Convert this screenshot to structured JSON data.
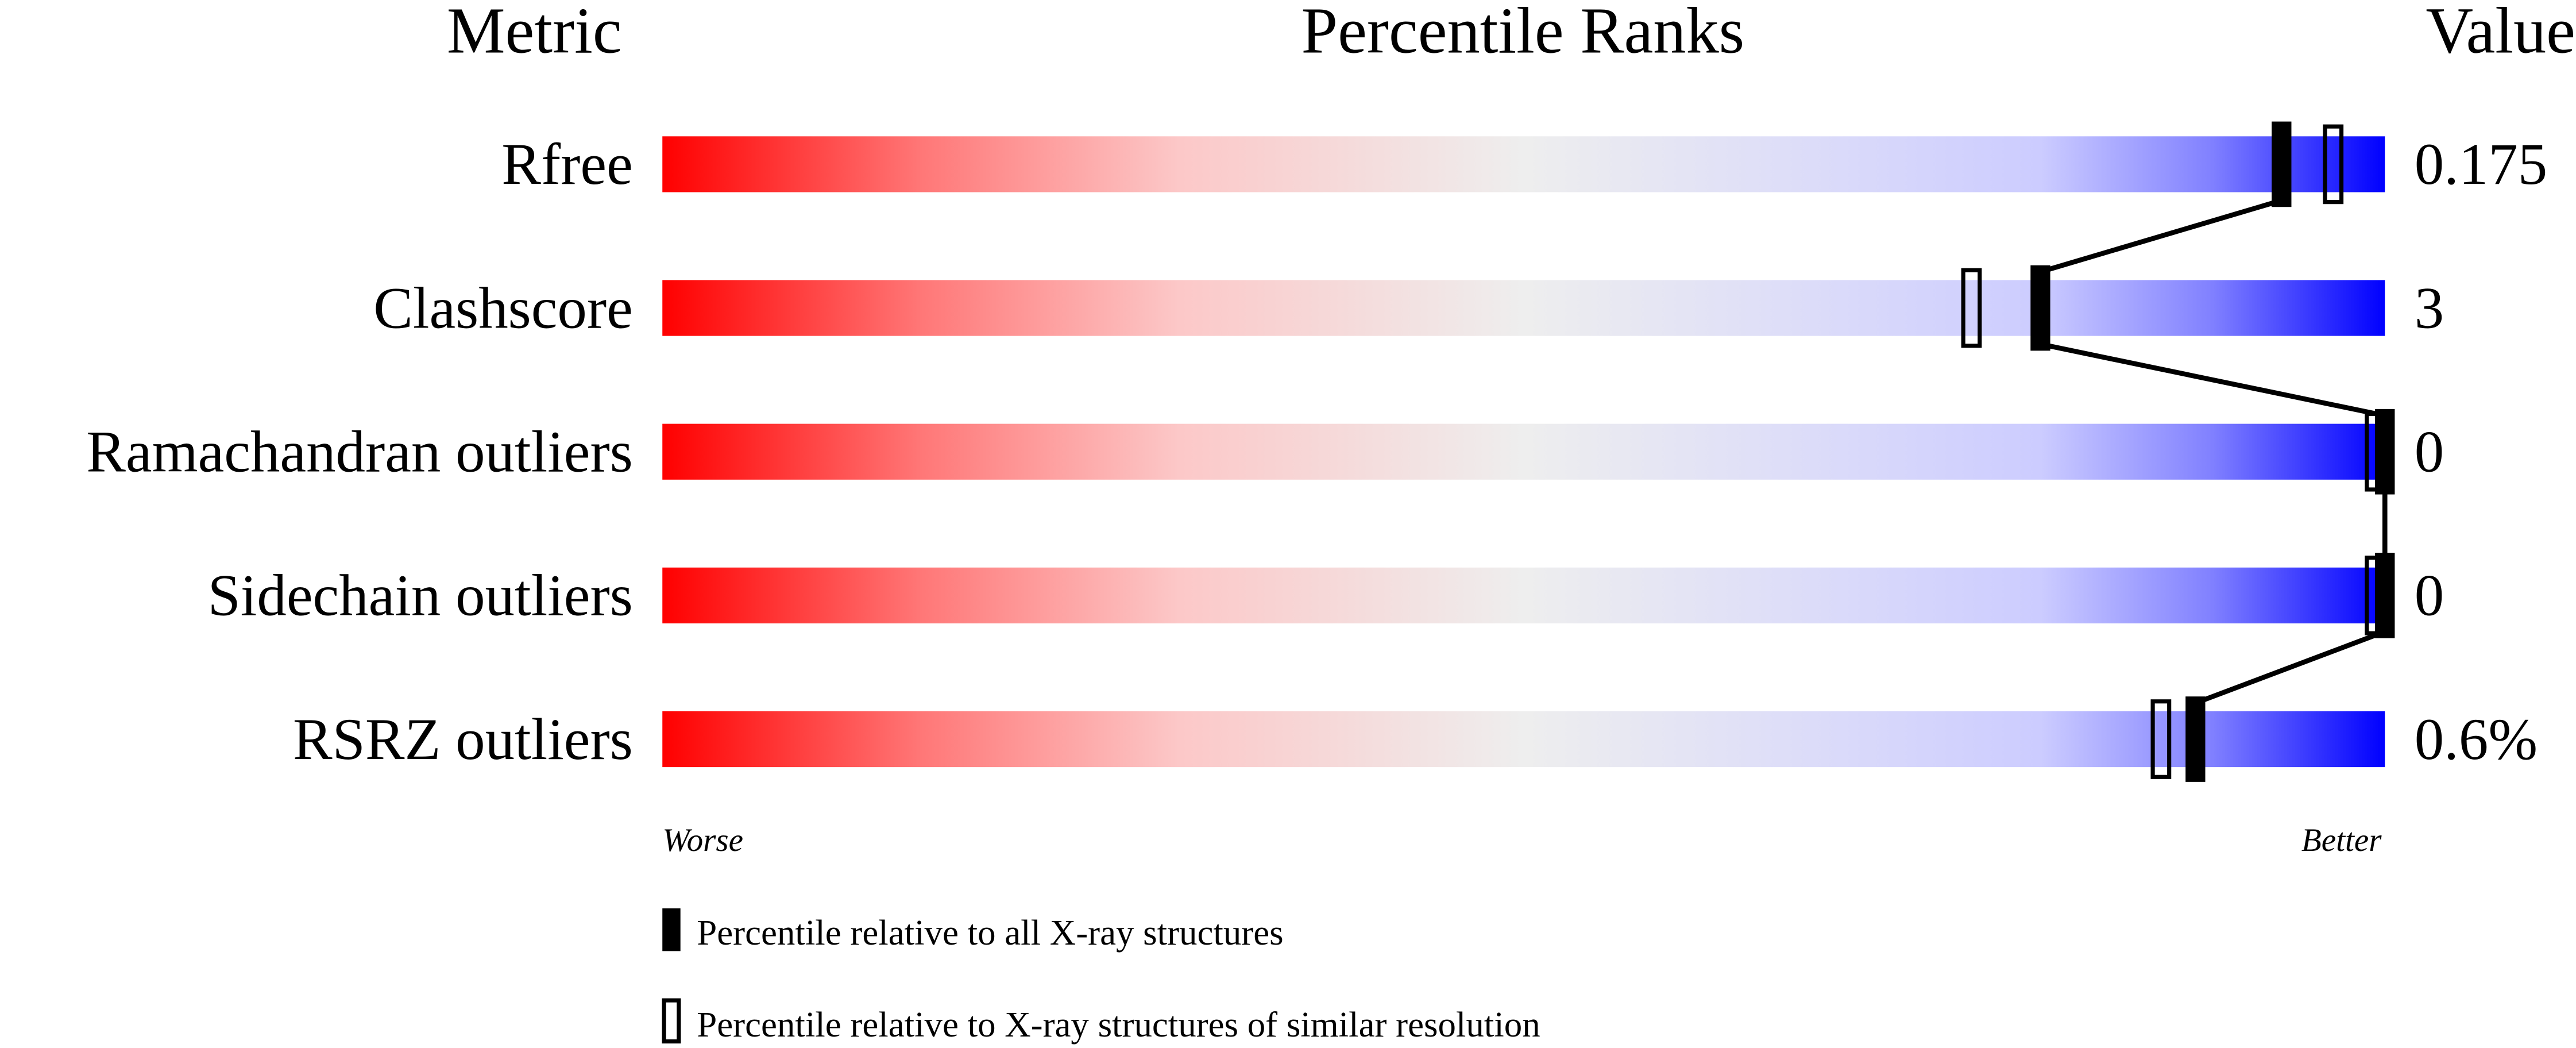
{
  "chart_data": {
    "type": "bar",
    "headers": {
      "metric": "Metric",
      "percentile": "Percentile Ranks",
      "value": "Value"
    },
    "xlim": [
      0,
      100
    ],
    "axis_labels": {
      "worse": "Worse",
      "better": "Better"
    },
    "colors": {
      "worse": "#ff0000",
      "mid": "#eeeeee",
      "better": "#0000ff",
      "marker": "#000000"
    },
    "rows": [
      {
        "metric": "Rfree",
        "value": "0.175",
        "percentile_all": 94,
        "percentile_similar": 97
      },
      {
        "metric": "Clashscore",
        "value": "3",
        "percentile_all": 80,
        "percentile_similar": 76
      },
      {
        "metric": "Ramachandran outliers",
        "value": "0",
        "percentile_all": 100,
        "percentile_similar": 100
      },
      {
        "metric": "Sidechain outliers",
        "value": "0",
        "percentile_all": 100,
        "percentile_similar": 100
      },
      {
        "metric": "RSRZ outliers",
        "value": "0.6%",
        "percentile_all": 89,
        "percentile_similar": 87
      }
    ],
    "legend": [
      {
        "marker": "filled",
        "label": "Percentile relative to all X-ray structures"
      },
      {
        "marker": "open",
        "label": "Percentile relative to X-ray structures of similar resolution"
      }
    ]
  }
}
